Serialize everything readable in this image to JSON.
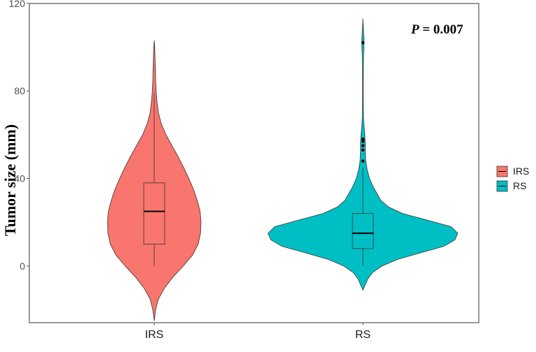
{
  "chart_data": {
    "type": "violin",
    "title": "",
    "xlabel": "",
    "ylabel": "Tumor size (mm)",
    "ylim": [
      -25,
      120
    ],
    "yticks": [
      0,
      40,
      80,
      120
    ],
    "grid": false,
    "legend_position": "right",
    "annotation": {
      "italic": "P",
      "text": " = 0.007"
    },
    "categories": [
      "IRS",
      "RS"
    ],
    "series": [
      {
        "name": "IRS",
        "color": "#F8766D",
        "box": {
          "min": 0,
          "q1": 10,
          "median": 25,
          "q3": 38,
          "max": 79
        },
        "outliers": [],
        "density": [
          [
            -25,
            0.0
          ],
          [
            -20,
            0.03
          ],
          [
            -15,
            0.09
          ],
          [
            -10,
            0.22
          ],
          [
            -5,
            0.4
          ],
          [
            0,
            0.62
          ],
          [
            5,
            0.82
          ],
          [
            10,
            0.94
          ],
          [
            15,
            0.99
          ],
          [
            20,
            1.0
          ],
          [
            25,
            0.98
          ],
          [
            30,
            0.92
          ],
          [
            35,
            0.84
          ],
          [
            40,
            0.74
          ],
          [
            45,
            0.63
          ],
          [
            50,
            0.51
          ],
          [
            55,
            0.38
          ],
          [
            60,
            0.25
          ],
          [
            65,
            0.15
          ],
          [
            70,
            0.09
          ],
          [
            75,
            0.06
          ],
          [
            80,
            0.04
          ],
          [
            85,
            0.03
          ],
          [
            90,
            0.025
          ],
          [
            95,
            0.018
          ],
          [
            100,
            0.01
          ],
          [
            103,
            0.0
          ]
        ]
      },
      {
        "name": "RS",
        "color": "#00BFC4",
        "box": {
          "min": 0,
          "q1": 8,
          "median": 15,
          "q3": 24,
          "max": 45
        },
        "outliers": [
          48,
          53,
          55,
          57,
          58,
          102
        ],
        "density": [
          [
            -11,
            0.0
          ],
          [
            -9,
            0.02
          ],
          [
            -6,
            0.05
          ],
          [
            -3,
            0.1
          ],
          [
            0,
            0.2
          ],
          [
            3,
            0.36
          ],
          [
            6,
            0.6
          ],
          [
            9,
            0.85
          ],
          [
            12,
            0.97
          ],
          [
            15,
            1.0
          ],
          [
            18,
            0.93
          ],
          [
            21,
            0.68
          ],
          [
            24,
            0.42
          ],
          [
            27,
            0.27
          ],
          [
            30,
            0.19
          ],
          [
            33,
            0.15
          ],
          [
            36,
            0.11
          ],
          [
            40,
            0.07
          ],
          [
            44,
            0.045
          ],
          [
            48,
            0.03
          ],
          [
            52,
            0.025
          ],
          [
            56,
            0.025
          ],
          [
            60,
            0.02
          ],
          [
            64,
            0.012
          ],
          [
            68,
            0.006
          ],
          [
            75,
            0.004
          ],
          [
            85,
            0.004
          ],
          [
            95,
            0.006
          ],
          [
            100,
            0.01
          ],
          [
            103,
            0.012
          ],
          [
            106,
            0.008
          ],
          [
            110,
            0.003
          ],
          [
            113,
            0.0
          ]
        ]
      }
    ]
  }
}
